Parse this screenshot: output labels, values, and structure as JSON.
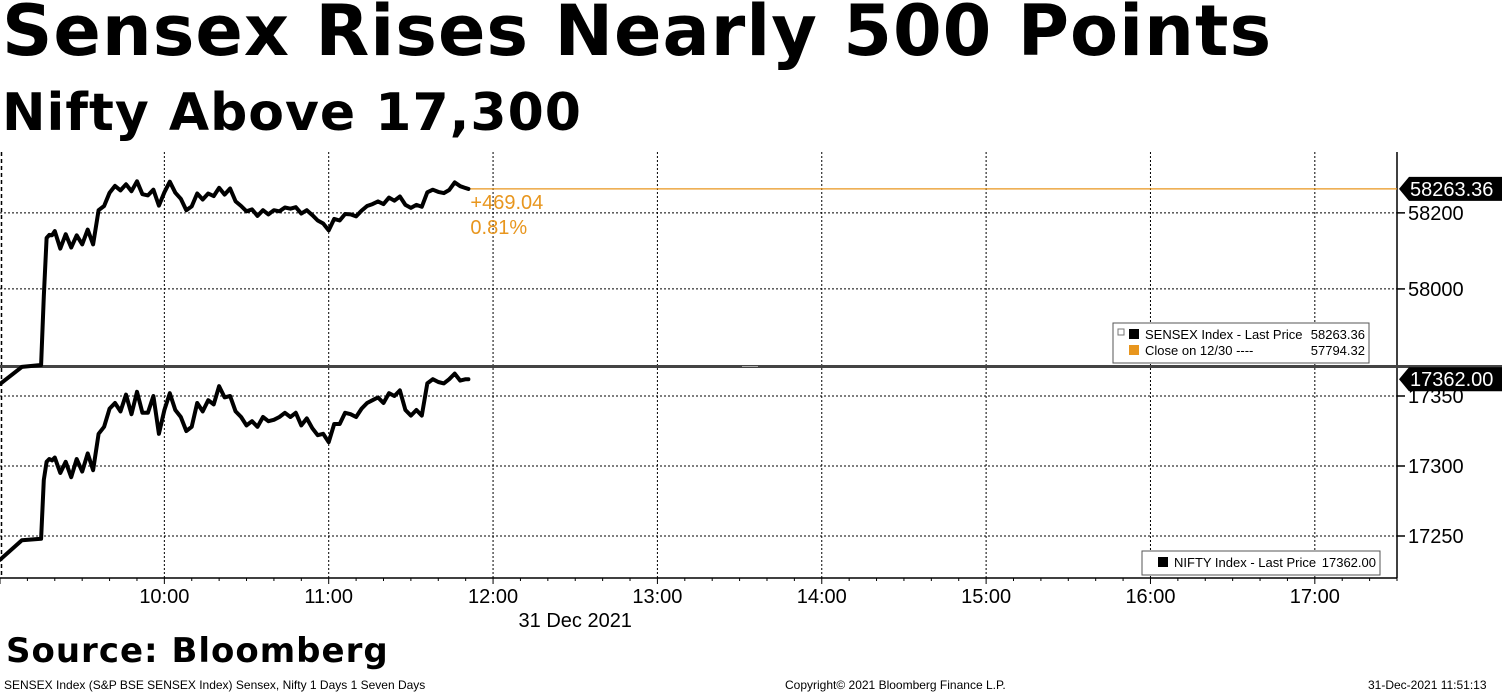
{
  "header": {
    "title": "Sensex Rises Nearly 500 Points",
    "subtitle": "Nifty Above 17,300"
  },
  "source": "Source: Bloomberg",
  "footer": {
    "left": "SENSEX Index (S&P BSE SENSEX Index) Sensex, Nifty 1 Days 1 Seven Days",
    "center": "Copyright© 2021 Bloomberg Finance L.P.",
    "right": "31-Dec-2021 11:51:13"
  },
  "colors": {
    "line": "#000000",
    "close": "#e8961e",
    "grid": "#000000"
  },
  "chart_data": [
    {
      "type": "line",
      "panel": "top",
      "y_ticks": [
        "58200",
        "58000"
      ],
      "ylim": [
        57800,
        58360
      ],
      "x_ticks": [
        "10:00",
        "11:00",
        "12:00",
        "13:00",
        "14:00",
        "15:00",
        "16:00",
        "17:00"
      ],
      "x_date_label": "31 Dec 2021",
      "xlim": [
        "09:00",
        "17:30"
      ],
      "grid": true,
      "last_price_label": "58263.36",
      "change_label": "+469.04",
      "change_pct_label": "0.81%",
      "legend": {
        "position": "bottom-right",
        "entries": [
          {
            "label": "SENSEX Index - Last Price",
            "value": "58263.36",
            "color": "#000000"
          },
          {
            "label": "Close on 12/30 ----",
            "value": "57794.32",
            "color": "#e8961e"
          }
        ]
      },
      "series": [
        {
          "name": "SENSEX Index - Last Price",
          "x": [
            "09:00",
            "09:08",
            "09:15",
            "09:16",
            "09:17",
            "09:18",
            "09:19",
            "09:20",
            "09:22",
            "09:24",
            "09:26",
            "09:28",
            "09:30",
            "09:32",
            "09:34",
            "09:36",
            "09:38",
            "09:40",
            "09:42",
            "09:44",
            "09:46",
            "09:48",
            "09:50",
            "09:52",
            "09:54",
            "09:56",
            "09:58",
            "10:00",
            "10:02",
            "10:04",
            "10:06",
            "10:08",
            "10:10",
            "10:12",
            "10:14",
            "10:16",
            "10:18",
            "10:20",
            "10:22",
            "10:24",
            "10:26",
            "10:28",
            "10:30",
            "10:32",
            "10:34",
            "10:36",
            "10:38",
            "10:40",
            "10:42",
            "10:44",
            "10:46",
            "10:48",
            "10:50",
            "10:52",
            "10:54",
            "10:56",
            "10:58",
            "11:00",
            "11:02",
            "11:04",
            "11:06",
            "11:08",
            "11:10",
            "11:12",
            "11:14",
            "11:16",
            "11:18",
            "11:20",
            "11:22",
            "11:24",
            "11:26",
            "11:28",
            "11:30",
            "11:32",
            "11:34",
            "11:36",
            "11:38",
            "11:40",
            "11:42",
            "11:44",
            "11:46",
            "11:48",
            "11:50",
            "11:51"
          ],
          "values": [
            57750,
            57795,
            57800,
            57980,
            58134,
            58142,
            58141,
            58152,
            58106,
            58144,
            58109,
            58141,
            58117,
            58156,
            58117,
            58207,
            58218,
            58253,
            58271,
            58259,
            58275,
            58257,
            58283,
            58249,
            58246,
            58261,
            58219,
            58254,
            58282,
            58253,
            58237,
            58207,
            58217,
            58251,
            58235,
            58251,
            58244,
            58266,
            58248,
            58264,
            58230,
            58218,
            58204,
            58209,
            58192,
            58207,
            58196,
            58207,
            58204,
            58214,
            58211,
            58215,
            58198,
            58207,
            58194,
            58180,
            58172,
            58154,
            58184,
            58180,
            58197,
            58196,
            58191,
            58206,
            58218,
            58223,
            58230,
            58223,
            58240,
            58232,
            58243,
            58221,
            58213,
            58221,
            58216,
            58254,
            58261,
            58255,
            58252,
            58260,
            58280,
            58270,
            58265,
            58263
          ]
        }
      ],
      "close_line": {
        "name": "Close on 12/30",
        "value": 57794.32
      }
    },
    {
      "type": "line",
      "panel": "bottom",
      "y_ticks": [
        "17350",
        "17300",
        "17250"
      ],
      "ylim": [
        17220,
        17370
      ],
      "x_ticks": [
        "10:00",
        "11:00",
        "12:00",
        "13:00",
        "14:00",
        "15:00",
        "16:00",
        "17:00"
      ],
      "xlim": [
        "09:00",
        "17:30"
      ],
      "grid": true,
      "last_price_label": "17362.00",
      "legend": {
        "position": "bottom-right",
        "entries": [
          {
            "label": "NIFTY Index - Last Price",
            "value": "17362.00",
            "color": "#000000"
          }
        ]
      },
      "series": [
        {
          "name": "NIFTY Index - Last Price",
          "x": [
            "09:00",
            "09:08",
            "09:15",
            "09:16",
            "09:17",
            "09:18",
            "09:19",
            "09:20",
            "09:22",
            "09:24",
            "09:26",
            "09:28",
            "09:30",
            "09:32",
            "09:34",
            "09:36",
            "09:38",
            "09:40",
            "09:42",
            "09:44",
            "09:46",
            "09:48",
            "09:50",
            "09:52",
            "09:54",
            "09:56",
            "09:58",
            "10:00",
            "10:02",
            "10:04",
            "10:06",
            "10:08",
            "10:10",
            "10:12",
            "10:14",
            "10:16",
            "10:18",
            "10:20",
            "10:22",
            "10:24",
            "10:26",
            "10:28",
            "10:30",
            "10:32",
            "10:34",
            "10:36",
            "10:38",
            "10:40",
            "10:42",
            "10:44",
            "10:46",
            "10:48",
            "10:50",
            "10:52",
            "10:54",
            "10:56",
            "10:58",
            "11:00",
            "11:02",
            "11:04",
            "11:06",
            "11:08",
            "11:10",
            "11:12",
            "11:14",
            "11:16",
            "11:18",
            "11:20",
            "11:22",
            "11:24",
            "11:26",
            "11:28",
            "11:30",
            "11:32",
            "11:34",
            "11:36",
            "11:38",
            "11:40",
            "11:42",
            "11:44",
            "11:46",
            "11:48",
            "11:50",
            "11:51"
          ],
          "values": [
            17233,
            17247,
            17248,
            17290,
            17303,
            17305,
            17304,
            17306,
            17295,
            17303,
            17292,
            17305,
            17296,
            17309,
            17297,
            17323,
            17328,
            17341,
            17345,
            17339,
            17351,
            17337,
            17353,
            17338,
            17338,
            17350,
            17323,
            17340,
            17352,
            17340,
            17335,
            17325,
            17328,
            17345,
            17339,
            17347,
            17344,
            17357,
            17349,
            17350,
            17339,
            17335,
            17329,
            17332,
            17328,
            17335,
            17332,
            17333,
            17335,
            17338,
            17335,
            17338,
            17329,
            17334,
            17327,
            17322,
            17323,
            17317,
            17330,
            17330,
            17338,
            17337,
            17335,
            17341,
            17345,
            17347,
            17349,
            17345,
            17352,
            17350,
            17354,
            17340,
            17336,
            17340,
            17336,
            17359,
            17362,
            17360,
            17359,
            17362,
            17366,
            17361,
            17362,
            17362
          ]
        }
      ]
    }
  ]
}
